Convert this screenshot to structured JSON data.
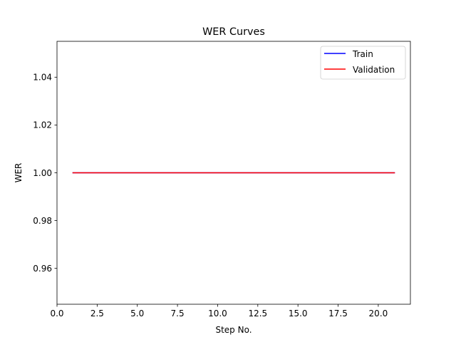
{
  "chart_data": {
    "type": "line",
    "title": "WER Curves",
    "xlabel": "Step No.",
    "ylabel": "WER",
    "xlim": [
      0,
      22
    ],
    "ylim": [
      0.945,
      1.055
    ],
    "x_ticks": [
      0,
      2.5,
      5,
      7.5,
      10,
      12.5,
      15,
      17.5,
      20
    ],
    "x_tick_labels": [
      "0.0",
      "2.5",
      "5.0",
      "7.5",
      "10.0",
      "12.5",
      "15.0",
      "17.5",
      "20.0"
    ],
    "y_ticks": [
      0.96,
      0.98,
      1.0,
      1.02,
      1.04
    ],
    "y_tick_labels": [
      "0.96",
      "0.98",
      "1.00",
      "1.02",
      "1.04"
    ],
    "grid": false,
    "legend_position": "top-right",
    "series": [
      {
        "name": "Train",
        "color": "#0000ff",
        "x": [
          1,
          2,
          3,
          4,
          5,
          6,
          7,
          8,
          9,
          10,
          11,
          12,
          13,
          14,
          15,
          16,
          17,
          18,
          19,
          20,
          21
        ],
        "y": [
          1,
          1,
          1,
          1,
          1,
          1,
          1,
          1,
          1,
          1,
          1,
          1,
          1,
          1,
          1,
          1,
          1,
          1,
          1,
          1,
          1
        ]
      },
      {
        "name": "Validation",
        "color": "#ff0000",
        "x": [
          1,
          2,
          3,
          4,
          5,
          6,
          7,
          8,
          9,
          10,
          11,
          12,
          13,
          14,
          15,
          16,
          17,
          18,
          19,
          20,
          21
        ],
        "y": [
          1,
          1,
          1,
          1,
          1,
          1,
          1,
          1,
          1,
          1,
          1,
          1,
          1,
          1,
          1,
          1,
          1,
          1,
          1,
          1,
          1
        ]
      }
    ]
  }
}
